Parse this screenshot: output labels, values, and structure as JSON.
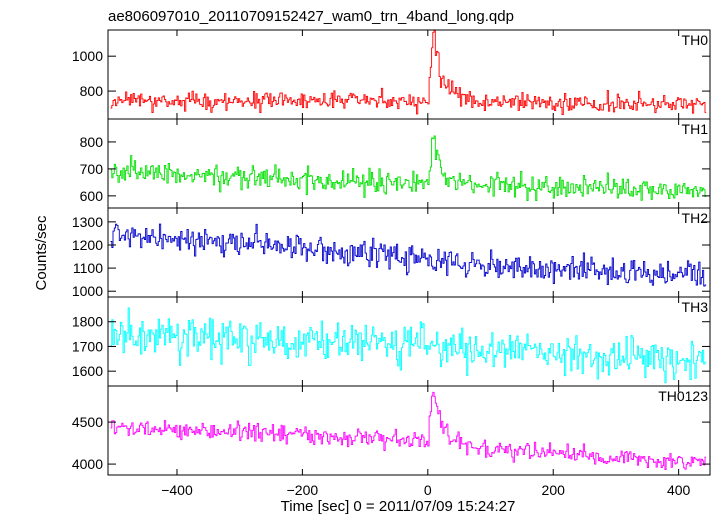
{
  "chart_data": {
    "type": "line",
    "title": "ae806097010_20110709152427_wam0_trn_4band_long.qdp",
    "xlabel": "Time [sec] 0 = 2011/07/09 15:24:27",
    "ylabel": "Counts/sec",
    "xlim": [
      -510,
      450
    ],
    "x_ticks": [
      -400,
      -200,
      0,
      200,
      400
    ],
    "x_ticklabels": [
      "−400",
      "−200",
      "0",
      "200",
      "400"
    ],
    "bin_width_sec": 2,
    "panels": [
      {
        "name": "TH0",
        "color": "#ff0000",
        "ylim": [
          640,
          1150
        ],
        "yticks": [
          800,
          1000
        ],
        "baseline": [
          [
            -500,
            745
          ],
          [
            -300,
            745
          ],
          [
            -100,
            745
          ],
          [
            0,
            745
          ],
          [
            100,
            735
          ],
          [
            300,
            725
          ],
          [
            440,
            720
          ]
        ],
        "noise_sigma": 25,
        "burst": [
          [
            0,
            0
          ],
          [
            4,
            230
          ],
          [
            8,
            330
          ],
          [
            12,
            300
          ],
          [
            16,
            250
          ],
          [
            20,
            150
          ],
          [
            30,
            90
          ],
          [
            40,
            50
          ],
          [
            60,
            20
          ],
          [
            80,
            0
          ]
        ]
      },
      {
        "name": "TH1",
        "color": "#00e000",
        "ylim": [
          555,
          885
        ],
        "yticks": [
          600,
          700,
          800
        ],
        "baseline": [
          [
            -500,
            690
          ],
          [
            -300,
            670
          ],
          [
            -100,
            650
          ],
          [
            0,
            645
          ],
          [
            100,
            640
          ],
          [
            300,
            625
          ],
          [
            440,
            615
          ]
        ],
        "noise_sigma": 20,
        "burst": [
          [
            0,
            0
          ],
          [
            4,
            110
          ],
          [
            8,
            150
          ],
          [
            12,
            130
          ],
          [
            16,
            90
          ],
          [
            20,
            55
          ],
          [
            30,
            25
          ],
          [
            45,
            0
          ]
        ]
      },
      {
        "name": "TH2",
        "color": "#0000cc",
        "ylim": [
          975,
          1360
        ],
        "yticks": [
          1000,
          1100,
          1200,
          1300
        ],
        "baseline": [
          [
            -500,
            1240
          ],
          [
            -300,
            1205
          ],
          [
            -100,
            1170
          ],
          [
            0,
            1140
          ],
          [
            100,
            1110
          ],
          [
            300,
            1085
          ],
          [
            440,
            1065
          ]
        ],
        "noise_sigma": 28,
        "burst": [
          [
            0,
            0
          ],
          [
            10,
            0
          ]
        ]
      },
      {
        "name": "TH3",
        "color": "#00ffff",
        "ylim": [
          1540,
          1900
        ],
        "yticks": [
          1600,
          1700,
          1800
        ],
        "baseline": [
          [
            -500,
            1745
          ],
          [
            -300,
            1735
          ],
          [
            -100,
            1715
          ],
          [
            0,
            1700
          ],
          [
            100,
            1685
          ],
          [
            300,
            1660
          ],
          [
            440,
            1640
          ]
        ],
        "noise_sigma": 38,
        "burst": [
          [
            0,
            0
          ],
          [
            10,
            0
          ]
        ]
      },
      {
        "name": "TH0123",
        "color": "#ff00ff",
        "ylim": [
          3870,
          4930
        ],
        "yticks": [
          4000,
          4500
        ],
        "baseline": [
          [
            -500,
            4430
          ],
          [
            -300,
            4390
          ],
          [
            -100,
            4310
          ],
          [
            0,
            4260
          ],
          [
            100,
            4160
          ],
          [
            300,
            4080
          ],
          [
            440,
            4010
          ]
        ],
        "noise_sigma": 55,
        "burst": [
          [
            0,
            0
          ],
          [
            4,
            430
          ],
          [
            8,
            560
          ],
          [
            12,
            480
          ],
          [
            16,
            370
          ],
          [
            20,
            230
          ],
          [
            30,
            130
          ],
          [
            45,
            50
          ],
          [
            70,
            0
          ]
        ]
      }
    ]
  }
}
